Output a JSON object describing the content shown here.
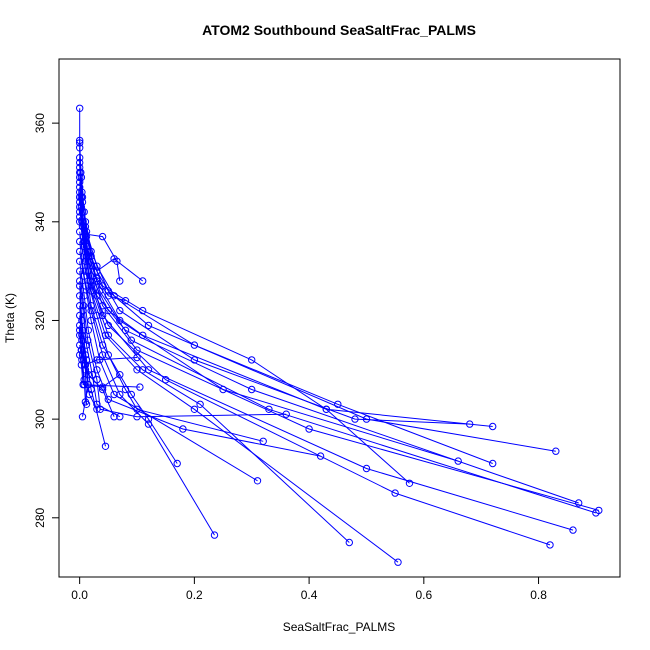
{
  "chart_data": {
    "type": "scatter",
    "title": "ATOM2 Southbound SeaSaltFrac_PALMS",
    "xlabel": "SeaSaltFrac_PALMS",
    "ylabel": "Theta (K)",
    "xlim": [
      -0.036,
      0.942
    ],
    "ylim": [
      268,
      373
    ],
    "x_ticks": [
      0.0,
      0.2,
      0.4,
      0.6,
      0.8
    ],
    "x_tick_labels": [
      "0.0",
      "0.2",
      "0.4",
      "0.6",
      "0.8"
    ],
    "y_ticks": [
      280,
      300,
      320,
      340,
      360
    ],
    "y_tick_labels": [
      "280",
      "300",
      "320",
      "340",
      "360"
    ],
    "grid": false,
    "legend": "none",
    "color": "#0000ff",
    "series": [
      {
        "points": [
          [
            0.0,
            363
          ],
          [
            0.0,
            356
          ],
          [
            0.0,
            351
          ],
          [
            0.003,
            345
          ],
          [
            0.01,
            340
          ],
          [
            0.02,
            333
          ],
          [
            0.04,
            327
          ],
          [
            0.11,
            322
          ],
          [
            0.3,
            312
          ],
          [
            0.43,
            302
          ],
          [
            0.72,
            298.5
          ]
        ]
      },
      {
        "points": [
          [
            0.0,
            356.5
          ],
          [
            0.002,
            350
          ],
          [
            0.005,
            344
          ],
          [
            0.012,
            338
          ],
          [
            0.03,
            331
          ],
          [
            0.06,
            325
          ],
          [
            0.2,
            315
          ],
          [
            0.45,
            303
          ],
          [
            0.72,
            291
          ]
        ]
      },
      {
        "points": [
          [
            0.0,
            355
          ],
          [
            0.003,
            349
          ],
          [
            0.008,
            342
          ],
          [
            0.02,
            334
          ],
          [
            0.05,
            326
          ],
          [
            0.12,
            319
          ],
          [
            0.5,
            300
          ],
          [
            0.83,
            293.5
          ]
        ]
      },
      {
        "points": [
          [
            0.0,
            353
          ],
          [
            0.004,
            346
          ],
          [
            0.01,
            339
          ],
          [
            0.025,
            331
          ],
          [
            0.07,
            322
          ],
          [
            0.2,
            312
          ],
          [
            0.48,
            300
          ],
          [
            0.68,
            299
          ]
        ]
      },
      {
        "points": [
          [
            0.0,
            352
          ],
          [
            0.005,
            345
          ],
          [
            0.012,
            337
          ],
          [
            0.03,
            328
          ],
          [
            0.07,
            320
          ],
          [
            0.25,
            306
          ],
          [
            0.66,
            291.5
          ]
        ]
      },
      {
        "points": [
          [
            0.0,
            350
          ],
          [
            0.003,
            343
          ],
          [
            0.009,
            336
          ],
          [
            0.02,
            329
          ],
          [
            0.05,
            322
          ],
          [
            0.11,
            317
          ],
          [
            0.43,
            302
          ],
          [
            0.575,
            287
          ]
        ]
      },
      {
        "points": [
          [
            0.0,
            349
          ],
          [
            0.005,
            342
          ],
          [
            0.014,
            334
          ],
          [
            0.035,
            326
          ],
          [
            0.09,
            316
          ],
          [
            0.33,
            302
          ],
          [
            0.9,
            281
          ]
        ]
      },
      {
        "points": [
          [
            0.0,
            348
          ],
          [
            0.006,
            340
          ],
          [
            0.016,
            332
          ],
          [
            0.04,
            323
          ],
          [
            0.1,
            314
          ],
          [
            0.4,
            298
          ],
          [
            0.905,
            281.5
          ]
        ]
      },
      {
        "points": [
          [
            0.0,
            347
          ],
          [
            0.004,
            340
          ],
          [
            0.012,
            333
          ],
          [
            0.03,
            325
          ],
          [
            0.08,
            318
          ],
          [
            0.3,
            306
          ],
          [
            0.87,
            283
          ]
        ]
      },
      {
        "points": [
          [
            0.0,
            346
          ],
          [
            0.005,
            339
          ],
          [
            0.015,
            330
          ],
          [
            0.04,
            321
          ],
          [
            0.12,
            310
          ],
          [
            0.5,
            290
          ],
          [
            0.86,
            277.5
          ]
        ]
      },
      {
        "points": [
          [
            0.0,
            345
          ],
          [
            0.006,
            337
          ],
          [
            0.018,
            328
          ],
          [
            0.05,
            319
          ],
          [
            0.15,
            308
          ],
          [
            0.55,
            285
          ],
          [
            0.82,
            274.5
          ]
        ]
      },
      {
        "points": [
          [
            0.0,
            344
          ],
          [
            0.007,
            336
          ],
          [
            0.02,
            327
          ],
          [
            0.05,
            317
          ],
          [
            0.11,
            310
          ],
          [
            0.21,
            303
          ],
          [
            0.47,
            275
          ]
        ]
      },
      {
        "points": [
          [
            0.0,
            343
          ],
          [
            0.008,
            335
          ],
          [
            0.02,
            326
          ],
          [
            0.045,
            317
          ],
          [
            0.1,
            310
          ],
          [
            0.2,
            302
          ],
          [
            0.555,
            271
          ]
        ]
      },
      {
        "points": [
          [
            0.0,
            341
          ],
          [
            0.01,
            332
          ],
          [
            0.02,
            323
          ],
          [
            0.04,
            315
          ],
          [
            0.09,
            305
          ],
          [
            0.12,
            300
          ],
          [
            0.17,
            291
          ]
        ]
      },
      {
        "points": [
          [
            0.0,
            338
          ],
          [
            0.01,
            330
          ],
          [
            0.03,
            321
          ],
          [
            0.05,
            313
          ],
          [
            0.08,
            306
          ],
          [
            0.1,
            302
          ],
          [
            0.32,
            295.5
          ]
        ]
      },
      {
        "points": [
          [
            0.0,
            336
          ],
          [
            0.008,
            329
          ],
          [
            0.02,
            322
          ],
          [
            0.04,
            313
          ],
          [
            0.07,
            305
          ],
          [
            0.12,
            299
          ],
          [
            0.235,
            276.5
          ]
        ]
      },
      {
        "points": [
          [
            0.0,
            334
          ],
          [
            0.01,
            327
          ],
          [
            0.02,
            320
          ],
          [
            0.035,
            312
          ],
          [
            0.06,
            305
          ],
          [
            0.31,
            287.5
          ]
        ]
      },
      {
        "points": [
          [
            0.0,
            332
          ],
          [
            0.008,
            325
          ],
          [
            0.015,
            318
          ],
          [
            0.03,
            310
          ],
          [
            0.05,
            304
          ],
          [
            0.18,
            298
          ],
          [
            0.42,
            292.5
          ]
        ]
      },
      {
        "points": [
          [
            0.0,
            330
          ],
          [
            0.007,
            323
          ],
          [
            0.014,
            316
          ],
          [
            0.03,
            308
          ],
          [
            0.036,
            302
          ],
          [
            0.1,
            300.5
          ],
          [
            0.36,
            301
          ]
        ]
      },
      {
        "points": [
          [
            0.0,
            328
          ],
          [
            0.006,
            322
          ],
          [
            0.012,
            315
          ],
          [
            0.022,
            309
          ],
          [
            0.03,
            303
          ],
          [
            0.07,
            300.5
          ]
        ]
      },
      {
        "points": [
          [
            0.0,
            327
          ],
          [
            0.004,
            320
          ],
          [
            0.01,
            313
          ],
          [
            0.015,
            307
          ],
          [
            0.005,
            300.5
          ]
        ]
      },
      {
        "points": [
          [
            0.0,
            325
          ],
          [
            0.005,
            318
          ],
          [
            0.012,
            312
          ],
          [
            0.02,
            306
          ],
          [
            0.045,
            294.5
          ]
        ]
      },
      {
        "points": [
          [
            0.0,
            323
          ],
          [
            0.004,
            317
          ],
          [
            0.01,
            311
          ],
          [
            0.017,
            305
          ],
          [
            0.03,
            302
          ]
        ]
      },
      {
        "points": [
          [
            0.0,
            321
          ],
          [
            0.004,
            316
          ],
          [
            0.01,
            310
          ],
          [
            0.012,
            303
          ]
        ]
      },
      {
        "points": [
          [
            0.0,
            319
          ],
          [
            0.003,
            314
          ],
          [
            0.008,
            308
          ],
          [
            0.01,
            303.5
          ]
        ]
      },
      {
        "points": [
          [
            0.0,
            318
          ],
          [
            0.005,
            313
          ],
          [
            0.015,
            309
          ],
          [
            0.04,
            306
          ],
          [
            0.06,
            300.5
          ]
        ]
      },
      {
        "points": [
          [
            0.0,
            317
          ],
          [
            0.003,
            314
          ],
          [
            0.01,
            311
          ],
          [
            0.03,
            312
          ],
          [
            0.1,
            312.5
          ]
        ]
      },
      {
        "points": [
          [
            0.0,
            315
          ],
          [
            0.004,
            312
          ],
          [
            0.008,
            307
          ],
          [
            0.04,
            306.5
          ],
          [
            0.07,
            309
          ]
        ]
      },
      {
        "points": [
          [
            0.0,
            313
          ],
          [
            0.003,
            311
          ],
          [
            0.006,
            307
          ],
          [
            0.105,
            306.5
          ]
        ]
      },
      {
        "points": [
          [
            0.0,
            345
          ],
          [
            0.01,
            337.5
          ],
          [
            0.04,
            337
          ],
          [
            0.065,
            332
          ],
          [
            0.07,
            328
          ]
        ]
      },
      {
        "points": [
          [
            0.0,
            342
          ],
          [
            0.012,
            335
          ],
          [
            0.03,
            330
          ],
          [
            0.06,
            332.5
          ],
          [
            0.11,
            328
          ]
        ]
      },
      {
        "points": [
          [
            0.0,
            340
          ],
          [
            0.015,
            333
          ],
          [
            0.03,
            328.5
          ],
          [
            0.05,
            325
          ],
          [
            0.08,
            324
          ]
        ]
      }
    ]
  }
}
